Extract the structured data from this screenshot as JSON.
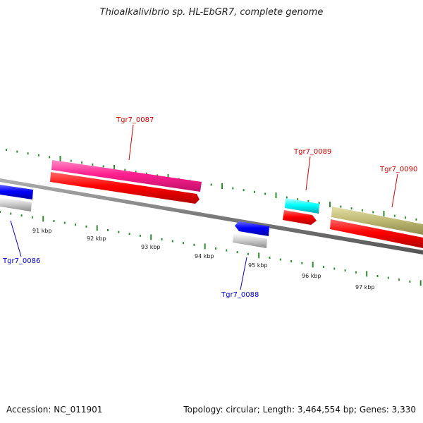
{
  "title": "Thioalkalivibrio sp. HL-EbGR7, complete genome",
  "footer": {
    "accession": "Accession: NC_011901",
    "stats": "Topology: circular; Length: 3,464,554 bp; Genes: 3,330"
  },
  "colors": {
    "backbone": "#808080",
    "ticks": "#2e8b2e",
    "forward_label": "#cc0000",
    "reverse_label": "#0000bb"
  },
  "kbp_labels": [
    "91 kbp",
    "92 kbp",
    "93 kbp",
    "94 kbp",
    "95 kbp",
    "96 kbp",
    "97 kbp"
  ],
  "genes": [
    {
      "id": "Tgr7_0086",
      "strand": "reverse",
      "color": "#0000ee"
    },
    {
      "id": "Tgr7_0087",
      "strand": "forward",
      "color": "#ee1493"
    },
    {
      "id": "Tgr7_0088",
      "strand": "reverse",
      "color": "#0000ee"
    },
    {
      "id": "Tgr7_0089",
      "strand": "forward",
      "color": "#00e5ee"
    },
    {
      "id": "Tgr7_0090",
      "strand": "forward",
      "color": "#bdb76b"
    }
  ]
}
